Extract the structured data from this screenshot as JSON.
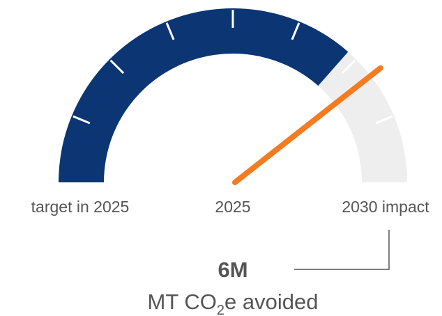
{
  "chart_data": {
    "type": "gauge",
    "range": [
      0,
      100
    ],
    "fill_value": 73,
    "fill_color": "#0b3673",
    "track_color": "#eeeeee",
    "needle_value": 79,
    "needle_color": "#f47b20",
    "ticks": [
      12.5,
      25,
      37.5,
      50,
      62.5,
      75,
      87.5
    ],
    "labels": {
      "left": "target in 2025",
      "center": "2025",
      "right": "2030 impact"
    },
    "headline": "6M",
    "caption": {
      "before": "MT CO",
      "sub": "2",
      "after": "e avoided"
    }
  }
}
